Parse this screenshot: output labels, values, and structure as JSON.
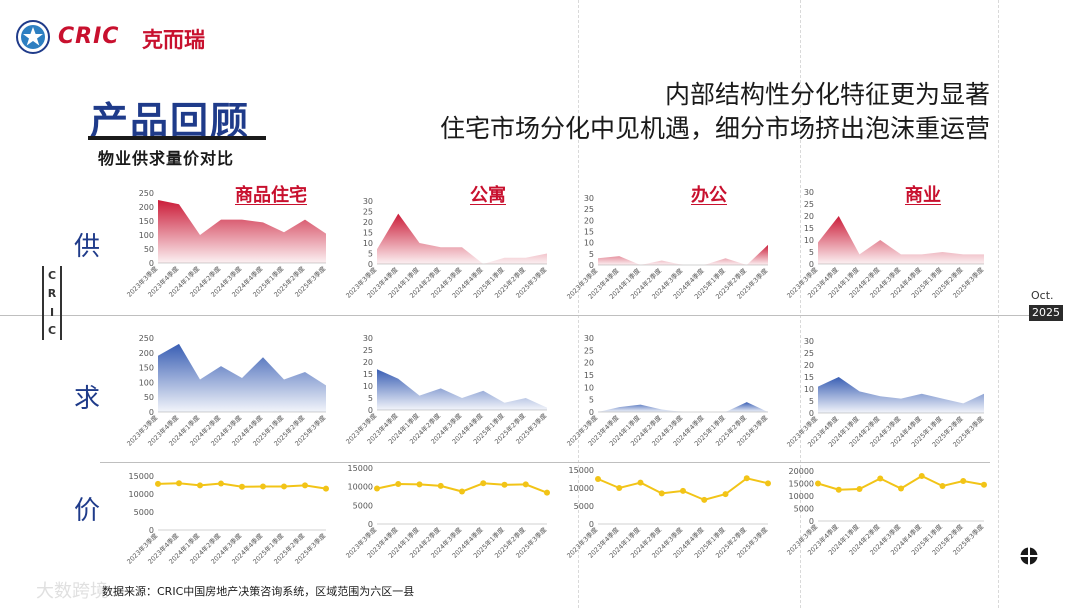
{
  "brand": {
    "name": "CRIC",
    "name_cn": "克而瑞"
  },
  "headline": {
    "line1": "内部结构性分化特征更为显著",
    "line2": "住宅市场分化中见机遇，细分市场挤出泡沫重运营"
  },
  "section": {
    "title": "产品回顾",
    "subtitle": "物业供求量价对比"
  },
  "categories": [
    "商品住宅",
    "公寓",
    "办公",
    "商业"
  ],
  "row_labels": {
    "supply": "供",
    "demand": "求",
    "price": "价"
  },
  "side_mark": {
    "letters": [
      "C",
      "R",
      "I",
      "C"
    ],
    "month": "Oct.",
    "year": "2025"
  },
  "footer": {
    "source": "数据来源：CRIC中国房地产决策咨询系统，区域范围为六区一县",
    "watermark": "大数跨境"
  },
  "colors": {
    "supply": "#c8102e",
    "demand": "#2f56b0",
    "price": "#f2c417",
    "brand": "#c8102e",
    "title": "#1f3b8a"
  },
  "chart_data": [
    {
      "id": "supply-residential",
      "type": "area",
      "metric": "供",
      "category": "商品住宅",
      "x": [
        "2023年3季度",
        "2023年4季度",
        "2024年1季度",
        "2024年2季度",
        "2024年3季度",
        "2024年4季度",
        "2025年1季度",
        "2025年2季度",
        "2025年3季度"
      ],
      "y_ticks": [
        0,
        50,
        100,
        150,
        200,
        250
      ],
      "ylim": [
        0,
        250
      ],
      "values": [
        225,
        210,
        100,
        155,
        155,
        145,
        110,
        155,
        105
      ]
    },
    {
      "id": "supply-apartment",
      "type": "area",
      "metric": "供",
      "category": "公寓",
      "x": [
        "2023年3季度",
        "2023年4季度",
        "2024年1季度",
        "2024年2季度",
        "2024年3季度",
        "2024年4季度",
        "2025年1季度",
        "2025年2季度",
        "2025年3季度"
      ],
      "y_ticks": [
        0,
        5,
        10,
        15,
        20,
        25,
        30
      ],
      "ylim": [
        0,
        30
      ],
      "values": [
        7,
        24,
        10,
        8,
        8,
        0,
        3,
        3,
        5
      ]
    },
    {
      "id": "supply-office",
      "type": "area",
      "metric": "供",
      "category": "办公",
      "x": [
        "2023年3季度",
        "2023年4季度",
        "2024年1季度",
        "2024年2季度",
        "2024年3季度",
        "2024年4季度",
        "2025年1季度",
        "2025年2季度",
        "2025年3季度"
      ],
      "y_ticks": [
        0,
        5,
        10,
        15,
        20,
        25,
        30
      ],
      "ylim": [
        0,
        30
      ],
      "values": [
        3,
        4,
        0,
        2,
        0,
        0,
        3,
        0,
        9
      ]
    },
    {
      "id": "supply-commercial",
      "type": "area",
      "metric": "供",
      "category": "商业",
      "x": [
        "2023年3季度",
        "2023年4季度",
        "2024年1季度",
        "2024年2季度",
        "2024年3季度",
        "2024年4季度",
        "2025年1季度",
        "2025年2季度",
        "2025年3季度"
      ],
      "y_ticks": [
        0,
        5,
        10,
        15,
        20,
        25,
        30
      ],
      "ylim": [
        0,
        30
      ],
      "values": [
        9,
        20,
        4,
        10,
        4,
        4,
        5,
        4,
        4
      ]
    },
    {
      "id": "demand-residential",
      "type": "area",
      "metric": "求",
      "category": "商品住宅",
      "x": [
        "2023年3季度",
        "2023年4季度",
        "2024年1季度",
        "2024年2季度",
        "2024年3季度",
        "2024年4季度",
        "2025年1季度",
        "2025年2季度",
        "2025年3季度"
      ],
      "y_ticks": [
        0,
        50,
        100,
        150,
        200,
        250
      ],
      "ylim": [
        0,
        250
      ],
      "values": [
        190,
        230,
        110,
        155,
        115,
        185,
        110,
        135,
        90
      ]
    },
    {
      "id": "demand-apartment",
      "type": "area",
      "metric": "求",
      "category": "公寓",
      "x": [
        "2023年3季度",
        "2023年4季度",
        "2024年1季度",
        "2024年2季度",
        "2024年3季度",
        "2024年4季度",
        "2025年1季度",
        "2025年2季度",
        "2025年3季度"
      ],
      "y_ticks": [
        0,
        5,
        10,
        15,
        20,
        25,
        30
      ],
      "ylim": [
        0,
        30
      ],
      "values": [
        17,
        13,
        6,
        9,
        5,
        8,
        3,
        5,
        1
      ]
    },
    {
      "id": "demand-office",
      "type": "area",
      "metric": "求",
      "category": "办公",
      "x": [
        "2023年3季度",
        "2023年4季度",
        "2024年1季度",
        "2024年2季度",
        "2024年3季度",
        "2024年4季度",
        "2025年1季度",
        "2025年2季度",
        "2025年3季度"
      ],
      "y_ticks": [
        0,
        5,
        10,
        15,
        20,
        25,
        30
      ],
      "ylim": [
        0,
        30
      ],
      "values": [
        0,
        2,
        3,
        1,
        0,
        0,
        0,
        4,
        0
      ]
    },
    {
      "id": "demand-commercial",
      "type": "area",
      "metric": "求",
      "category": "商业",
      "x": [
        "2023年3季度",
        "2023年4季度",
        "2024年1季度",
        "2024年2季度",
        "2024年3季度",
        "2024年4季度",
        "2025年1季度",
        "2025年2季度",
        "2025年3季度"
      ],
      "y_ticks": [
        0,
        5,
        10,
        15,
        20,
        25,
        30
      ],
      "ylim": [
        0,
        30
      ],
      "values": [
        11,
        15,
        9,
        7,
        6,
        8,
        6,
        4,
        8
      ]
    },
    {
      "id": "price-residential",
      "type": "line",
      "metric": "价",
      "category": "商品住宅",
      "x": [
        "2023年3季度",
        "2023年4季度",
        "2024年1季度",
        "2024年2季度",
        "2024年3季度",
        "2024年4季度",
        "2025年1季度",
        "2025年2季度",
        "2025年3季度"
      ],
      "y_ticks": [
        0,
        5000,
        10000,
        15000
      ],
      "ylim": [
        0,
        15000
      ],
      "values": [
        12800,
        13000,
        12400,
        12900,
        12000,
        12100,
        12100,
        12400,
        11500
      ]
    },
    {
      "id": "price-apartment",
      "type": "line",
      "metric": "价",
      "category": "公寓",
      "x": [
        "2023年3季度",
        "2023年4季度",
        "2024年1季度",
        "2024年2季度",
        "2024年3季度",
        "2024年4季度",
        "2025年1季度",
        "2025年2季度",
        "2025年3季度"
      ],
      "y_ticks": [
        0,
        5000,
        10000,
        15000
      ],
      "ylim": [
        0,
        15000
      ],
      "values": [
        9500,
        10700,
        10600,
        10200,
        8700,
        10900,
        10500,
        10600,
        8400
      ]
    },
    {
      "id": "price-office",
      "type": "line",
      "metric": "价",
      "category": "办公",
      "x": [
        "2023年3季度",
        "2023年4季度",
        "2024年1季度",
        "2024年2季度",
        "2024年3季度",
        "2024年4季度",
        "2025年1季度",
        "2025年2季度",
        "2025年3季度"
      ],
      "y_ticks": [
        0,
        5000,
        10000,
        15000
      ],
      "ylim": [
        0,
        15000
      ],
      "values": [
        12500,
        10000,
        11500,
        8500,
        9200,
        6700,
        8300,
        12700,
        11300
      ]
    },
    {
      "id": "price-commercial",
      "type": "line",
      "metric": "价",
      "category": "商业",
      "x": [
        "2023年3季度",
        "2023年4季度",
        "2024年1季度",
        "2024年2季度",
        "2024年3季度",
        "2024年4季度",
        "2025年1季度",
        "2025年2季度",
        "2025年3季度"
      ],
      "y_ticks": [
        0,
        5000,
        10000,
        15000,
        20000
      ],
      "ylim": [
        0,
        20000
      ],
      "values": [
        15000,
        12500,
        12800,
        17000,
        13000,
        18000,
        14000,
        16000,
        14500
      ]
    }
  ]
}
